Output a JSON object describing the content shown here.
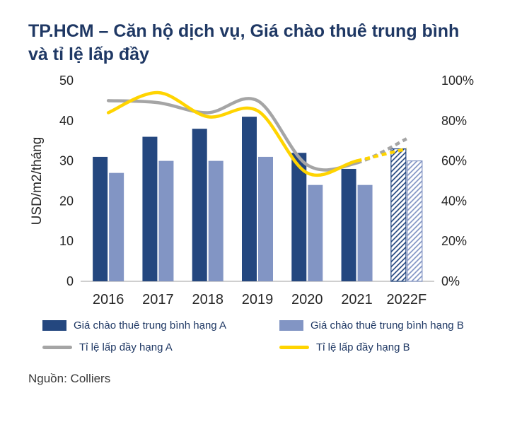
{
  "title": "TP.HCM – Căn hộ dịch vụ, Giá chào thuê trung bình và tỉ lệ lấp đầy",
  "source": "Nguồn: Colliers",
  "colors": {
    "title": "#1f3864",
    "bar_a": "#24477f",
    "bar_b": "#8295c4",
    "line_a": "#a5a5a5",
    "line_b": "#ffd400",
    "axis_line": "#bfbfbf"
  },
  "chart_data": {
    "type": "bar",
    "subtype": "grouped bars with dual-axis occupancy lines, last category is forecast (hatched/dashed)",
    "categories": [
      "2016",
      "2017",
      "2018",
      "2019",
      "2020",
      "2021",
      "2022F"
    ],
    "bar_series": [
      {
        "name": "Giá chào thuê trung bình hạng A",
        "color": "#24477f",
        "values": [
          31,
          36,
          38,
          41,
          32,
          28,
          33
        ],
        "forecast_last": true
      },
      {
        "name": "Giá chào thuê trung bình hạng B",
        "color": "#8295c4",
        "values": [
          27,
          30,
          30,
          31,
          24,
          24,
          30
        ],
        "forecast_last": true
      }
    ],
    "line_series": [
      {
        "name": "Tỉ lệ lấp đầy hạng A",
        "color": "#a5a5a5",
        "values": [
          90,
          89,
          84,
          90,
          58,
          59,
          71
        ],
        "forecast_last": true
      },
      {
        "name": "Tỉ lệ lấp đầy hạng B",
        "color": "#ffd400",
        "values": [
          84,
          94,
          82,
          85,
          54,
          60,
          66
        ],
        "forecast_last": true
      }
    ],
    "ylabel": "USD/m2/tháng",
    "y_left": {
      "min": 0,
      "max": 50,
      "ticks": [
        0,
        10,
        20,
        30,
        40,
        50
      ]
    },
    "y_right": {
      "min": 0,
      "max": 100,
      "ticks": [
        0,
        20,
        40,
        60,
        80,
        100
      ],
      "suffix": "%"
    },
    "grid": false,
    "legend_position": "bottom"
  }
}
